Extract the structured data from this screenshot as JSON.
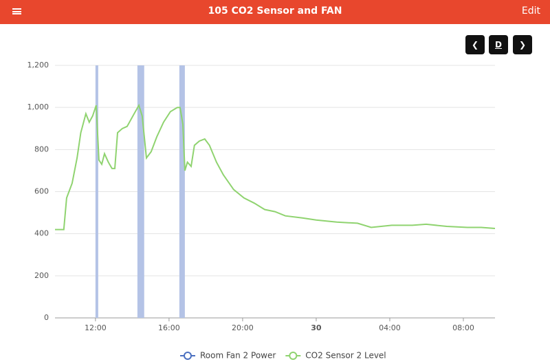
{
  "header": {
    "title": "105 CO2 Sensor and FAN",
    "edit": "Edit"
  },
  "controls": {
    "period": "D"
  },
  "chart_data": {
    "type": "line",
    "xlim": [
      9.8,
      33.72
    ],
    "xticks": [
      {
        "value": 12,
        "label": "12:00"
      },
      {
        "value": 16,
        "label": "16:00"
      },
      {
        "value": 20,
        "label": "20:00"
      },
      {
        "value": 24,
        "label": "30"
      },
      {
        "value": 28,
        "label": "04:00"
      },
      {
        "value": 32,
        "label": "08:00"
      }
    ],
    "ylim": [
      0,
      1200
    ],
    "yticks": [
      0,
      200,
      400,
      600,
      800,
      {
        "value": 1000,
        "label": "1,000"
      },
      {
        "value": 1200,
        "label": "1,200"
      }
    ],
    "grid": true,
    "series": [
      {
        "name": "Room Fan 2 Power",
        "color": "#b4c3e6",
        "marker_color": "#4a6fc0",
        "kind": "band",
        "x_start": [
          12.0,
          14.28,
          16.56
        ],
        "x_end": [
          12.15,
          14.65,
          16.86
        ],
        "values": [
          1,
          1,
          1
        ]
      },
      {
        "name": "CO2 Sensor 2 Level",
        "color": "#8fd36f",
        "kind": "line",
        "x": [
          9.8,
          10.28,
          10.43,
          10.73,
          11.0,
          11.2,
          11.48,
          11.66,
          11.85,
          12.04,
          12.19,
          12.34,
          12.49,
          12.7,
          12.9,
          13.05,
          13.2,
          13.46,
          13.72,
          14.1,
          14.36,
          14.54,
          14.77,
          15.03,
          15.33,
          15.7,
          16.07,
          16.45,
          16.6,
          16.75,
          16.86,
          17.0,
          17.2,
          17.38,
          17.64,
          17.94,
          18.2,
          18.58,
          18.95,
          19.51,
          20.07,
          20.64,
          21.2,
          21.76,
          22.32,
          23.25,
          24.0,
          25.12,
          26.24,
          26.99,
          28.11,
          29.23,
          29.98,
          31.1,
          32.22,
          32.97,
          33.72
        ],
        "values": [
          420,
          420,
          570,
          640,
          760,
          880,
          970,
          930,
          960,
          1010,
          750,
          730,
          780,
          740,
          710,
          710,
          880,
          900,
          910,
          970,
          1010,
          960,
          760,
          790,
          860,
          930,
          980,
          1000,
          1000,
          920,
          700,
          740,
          720,
          820,
          840,
          850,
          820,
          740,
          680,
          610,
          570,
          545,
          515,
          505,
          485,
          475,
          465,
          455,
          450,
          430,
          440,
          440,
          445,
          435,
          430,
          430,
          425
        ]
      }
    ]
  }
}
